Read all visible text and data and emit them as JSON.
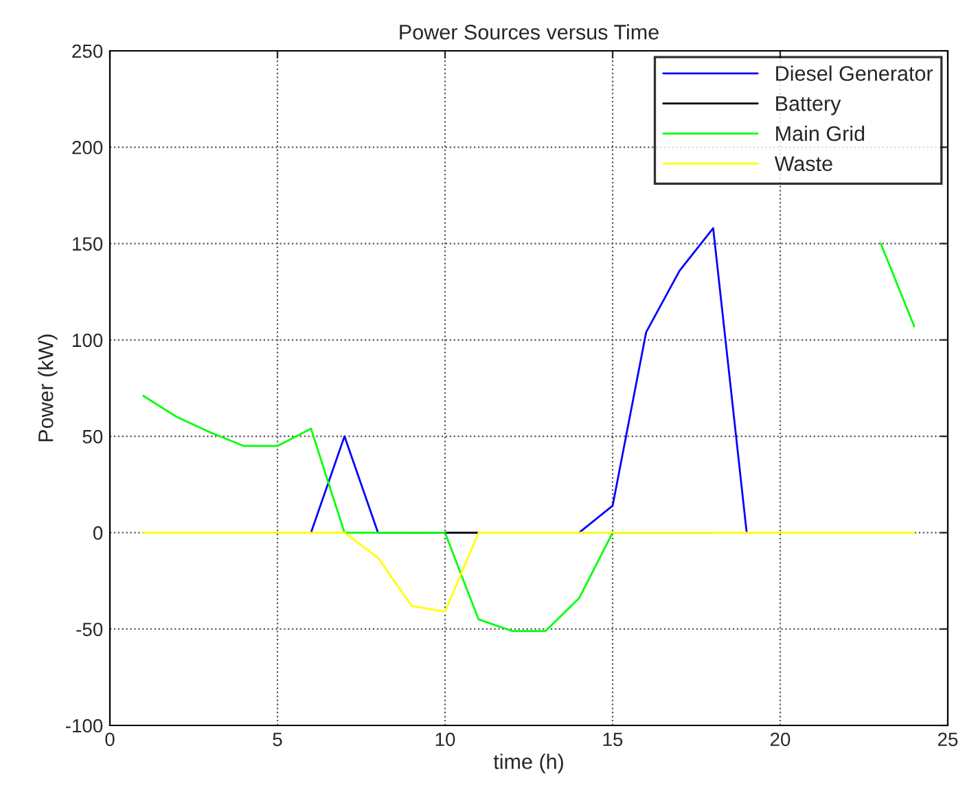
{
  "chart_data": {
    "type": "line",
    "title": "Power Sources versus Time",
    "xlabel": "time (h)",
    "ylabel": "Power (kW)",
    "x": [
      1,
      2,
      3,
      4,
      5,
      6,
      7,
      8,
      9,
      10,
      11,
      12,
      13,
      14,
      15,
      16,
      17,
      18,
      19,
      20,
      21,
      22,
      23,
      24
    ],
    "series": [
      {
        "name": "Diesel Generator",
        "color": "#0000ff",
        "values": [
          null,
          null,
          null,
          null,
          null,
          0,
          50,
          0,
          0,
          0,
          0,
          null,
          null,
          0,
          14,
          104,
          136,
          158,
          0,
          null,
          null,
          null,
          null,
          null
        ]
      },
      {
        "name": "Battery",
        "color": "#000000",
        "values": [
          null,
          null,
          null,
          null,
          null,
          null,
          null,
          null,
          null,
          0,
          0,
          null,
          null,
          null,
          null,
          null,
          null,
          null,
          null,
          null,
          null,
          null,
          null,
          null
        ]
      },
      {
        "name": "Main Grid",
        "color": "#00ff00",
        "values": [
          71,
          60,
          52,
          45,
          45,
          54,
          0,
          0,
          0,
          0,
          -45,
          -51,
          -51,
          -34,
          0,
          0,
          0,
          0,
          null,
          null,
          null,
          null,
          150,
          107
        ]
      },
      {
        "name": "Waste",
        "color": "#ffff00",
        "values": [
          0,
          0,
          0,
          0,
          0,
          0,
          0,
          -13,
          -38,
          -41,
          0,
          0,
          0,
          0,
          0,
          0,
          0,
          0,
          0,
          0,
          0,
          0,
          0,
          0
        ]
      }
    ],
    "xlim": [
      0,
      25
    ],
    "xticks": [
      0,
      5,
      10,
      15,
      20,
      25
    ],
    "ylim": [
      -100,
      250
    ],
    "yticks": [
      -100,
      -50,
      0,
      50,
      100,
      150,
      200,
      250
    ],
    "grid": true,
    "legend": "top right",
    "line_style": "solid",
    "marker": "none"
  }
}
